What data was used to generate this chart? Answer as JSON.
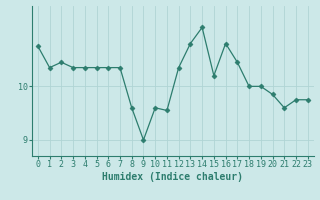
{
  "xlabel": "Humidex (Indice chaleur)",
  "x": [
    0,
    1,
    2,
    3,
    4,
    5,
    6,
    7,
    8,
    9,
    10,
    11,
    12,
    13,
    14,
    15,
    16,
    17,
    18,
    19,
    20,
    21,
    22,
    23
  ],
  "y": [
    10.75,
    10.35,
    10.45,
    10.35,
    10.35,
    10.35,
    10.35,
    10.35,
    9.6,
    9.0,
    9.6,
    9.55,
    10.35,
    10.8,
    11.1,
    10.2,
    10.8,
    10.45,
    10.0,
    10.0,
    9.85,
    9.6,
    9.75,
    9.75
  ],
  "line_color": "#2d7d6e",
  "marker": "D",
  "marker_size": 2.5,
  "bg_color": "#cce8e8",
  "grid_color": "#b0d4d4",
  "tick_color": "#2d7d6e",
  "label_color": "#2d7d6e",
  "ylim": [
    8.7,
    11.5
  ],
  "yticks": [
    9,
    10
  ],
  "xtick_labels": [
    "0",
    "1",
    "2",
    "3",
    "4",
    "5",
    "6",
    "7",
    "8",
    "9",
    "10",
    "11",
    "12",
    "13",
    "14",
    "15",
    "16",
    "17",
    "18",
    "19",
    "20",
    "21",
    "22",
    "23"
  ],
  "xlabel_fontsize": 7,
  "tick_fontsize": 6
}
